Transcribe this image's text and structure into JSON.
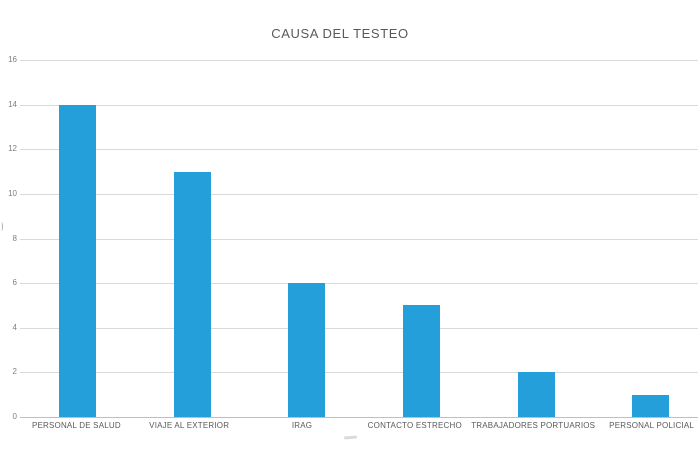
{
  "chart_data": {
    "type": "bar",
    "title": "CAUSA DEL TESTEO",
    "categories": [
      "PERSONAL DE SALUD",
      "VIAJE AL EXTERIOR",
      "IRAG",
      "CONTACTO ESTRECHO",
      "TRABAJADORES PORTUARIOS",
      "PERSONAL POLICIAL"
    ],
    "values": [
      14,
      11,
      6,
      5,
      2,
      1
    ],
    "xlabel": "",
    "ylabel": "",
    "ylim": [
      0,
      16
    ],
    "yticks": [
      0,
      2,
      4,
      6,
      8,
      10,
      12,
      14,
      16
    ],
    "grid": true,
    "legend": "none",
    "colors": {
      "bar": "#259fd9",
      "gridline": "#d9d9d9",
      "axis_line": "#bfbfbf",
      "title_text": "#595959",
      "tick_label_text": "#7f7f7f",
      "category_label_text": "#595959",
      "background": "#ffffff"
    }
  }
}
